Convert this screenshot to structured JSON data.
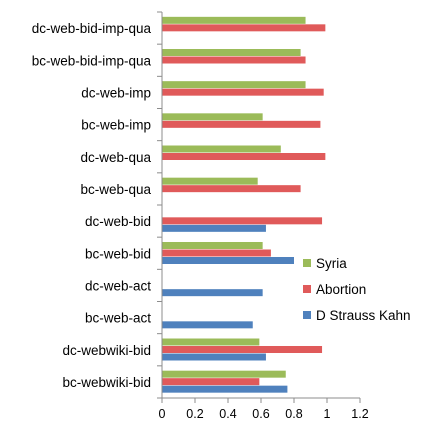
{
  "chart_data": {
    "type": "bar",
    "orientation": "horizontal",
    "categories": [
      "dc-web-bid-imp-qua",
      "bc-web-bid-imp-qua",
      "dc-web-imp",
      "bc-web-imp",
      "dc-web-qua",
      "bc-web-qua",
      "dc-web-bid",
      "bc-web-bid",
      "dc-web-act",
      "bc-web-act",
      "dc-webwiki-bid",
      "bc-webwiki-bid"
    ],
    "series": [
      {
        "name": "Syria",
        "color": "#9bbb59",
        "values": [
          0.87,
          0.84,
          0.87,
          0.61,
          0.72,
          0.58,
          null,
          0.61,
          null,
          null,
          0.59,
          0.75
        ]
      },
      {
        "name": "Abortion",
        "color": "#e05a5a",
        "values": [
          0.99,
          0.87,
          0.98,
          0.96,
          0.99,
          0.84,
          0.97,
          0.66,
          null,
          null,
          0.97,
          0.59
        ]
      },
      {
        "name": "D Strauss Kahn",
        "color": "#4f81bd",
        "values": [
          null,
          null,
          null,
          null,
          null,
          null,
          0.63,
          0.8,
          0.61,
          0.55,
          0.63,
          0.76
        ]
      }
    ],
    "xlim": [
      0,
      1.2
    ],
    "xticks": [
      "0",
      "0.2",
      "0.4",
      "0.6",
      "0.8",
      "1",
      "1.2"
    ],
    "title": "",
    "xlabel": "",
    "ylabel": "",
    "grid": false,
    "legend_position": "right"
  }
}
